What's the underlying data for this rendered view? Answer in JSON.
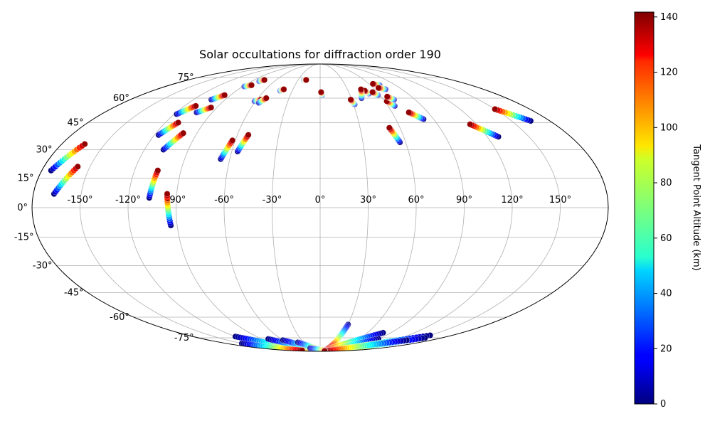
{
  "chart_data": {
    "type": "scatter",
    "projection": "mollweide",
    "title": "Solar occultations for diffraction order 190",
    "grid": true,
    "lon_ticks": [
      "-150°",
      "-120°",
      "-90°",
      "-60°",
      "-30°",
      "0°",
      "30°",
      "60°",
      "90°",
      "120°",
      "150°"
    ],
    "lon_tick_values": [
      -150,
      -120,
      -90,
      -60,
      -30,
      0,
      30,
      60,
      90,
      120,
      150
    ],
    "lat_ticks": [
      "75°",
      "60°",
      "45°",
      "30°",
      "15°",
      "0°",
      "-15°",
      "-30°",
      "-45°",
      "-60°",
      "-75°"
    ],
    "lat_tick_values": [
      75,
      60,
      45,
      30,
      15,
      0,
      -15,
      -30,
      -45,
      -60,
      -75
    ],
    "colorbar": {
      "label": "Tangent Point Altitude (km)",
      "min": 0,
      "max": 140,
      "ticks": [
        "0",
        "20",
        "40",
        "60",
        "80",
        "100",
        "120",
        "140"
      ],
      "tick_values": [
        0,
        20,
        40,
        60,
        80,
        100,
        120,
        140
      ],
      "colormap": "jet"
    },
    "tracks": [
      {
        "start": [
          -174,
          19
        ],
        "end": [
          -164,
          33
        ]
      },
      {
        "start": [
          -167,
          7
        ],
        "end": [
          -158,
          21
        ]
      },
      {
        "start": [
          -118,
          50
        ],
        "end": [
          -110,
          55
        ]
      },
      {
        "start": [
          -117,
          38
        ],
        "end": [
          -110,
          45
        ]
      },
      {
        "start": [
          -107,
          30
        ],
        "end": [
          -100,
          39
        ]
      },
      {
        "start": [
          -107,
          5
        ],
        "end": [
          -105,
          19
        ]
      },
      {
        "start": [
          -94,
          -9
        ],
        "end": [
          -96,
          7
        ]
      },
      {
        "start": [
          -103,
          59
        ],
        "end": [
          -96,
          62
        ]
      },
      {
        "start": [
          -103,
          51
        ],
        "end": [
          -95,
          54
        ]
      },
      {
        "start": [
          -88,
          68
        ],
        "end": [
          -82,
          69
        ]
      },
      {
        "start": [
          -80,
          72
        ],
        "end": [
          -76,
          73
        ]
      },
      {
        "start": [
          -66,
          25
        ],
        "end": [
          -62,
          35
        ]
      },
      {
        "start": [
          -56,
          29
        ],
        "end": [
          -52,
          38
        ]
      },
      {
        "start": [
          -61,
          58
        ],
        "end": [
          -56,
          59
        ]
      },
      {
        "start": [
          -56,
          57
        ],
        "end": [
          -52,
          60
        ]
      },
      {
        "start": [
          -43,
          65
        ],
        "end": [
          -40,
          66
        ]
      },
      {
        "start": [
          -22,
          73
        ],
        "end": [
          -19,
          73
        ]
      },
      {
        "start": [
          2,
          62
        ],
        "end": [
          1,
          64
        ]
      },
      {
        "start": [
          31,
          56
        ],
        "end": [
          29,
          59
        ]
      },
      {
        "start": [
          50,
          63
        ],
        "end": [
          48,
          65
        ]
      },
      {
        "start": [
          58,
          62
        ],
        "end": [
          55,
          64
        ]
      },
      {
        "start": [
          71,
          69
        ],
        "end": [
          65,
          70
        ]
      },
      {
        "start": [
          72,
          66
        ],
        "end": [
          66,
          67
        ]
      },
      {
        "start": [
          66,
          55
        ],
        "end": [
          62,
          58
        ]
      },
      {
        "start": [
          70,
          59
        ],
        "end": [
          66,
          61
        ]
      },
      {
        "start": [
          82,
          47
        ],
        "end": [
          74,
          51
        ]
      },
      {
        "start": [
          56,
          34
        ],
        "end": [
          52,
          42
        ]
      },
      {
        "start": [
          128,
          37
        ],
        "end": [
          115,
          44
        ]
      },
      {
        "start": [
          165,
          46
        ],
        "end": [
          150,
          53
        ]
      },
      {
        "start": [
          40,
          60
        ],
        "end": [
          45,
          66
        ]
      }
    ],
    "south_tracks": [
      {
        "start": [
          -120,
          -74
        ],
        "end": [
          -60,
          -88
        ]
      },
      {
        "start": [
          -80,
          -76
        ],
        "end": [
          -20,
          -89
        ]
      },
      {
        "start": [
          -60,
          -77
        ],
        "end": [
          -10,
          -89
        ]
      },
      {
        "start": [
          -40,
          -79
        ],
        "end": [
          0,
          -89
        ]
      },
      {
        "start": [
          30,
          -65
        ],
        "end": [
          25,
          -85
        ]
      },
      {
        "start": [
          80,
          -71
        ],
        "end": [
          20,
          -88
        ]
      },
      {
        "start": [
          90,
          -76
        ],
        "end": [
          30,
          -89
        ]
      },
      {
        "start": [
          150,
          -73
        ],
        "end": [
          60,
          -88
        ]
      },
      {
        "start": [
          155,
          -75
        ],
        "end": [
          80,
          -89
        ]
      },
      {
        "start": [
          140,
          -77
        ],
        "end": [
          50,
          -89
        ]
      },
      {
        "start": [
          -30,
          -85
        ],
        "end": [
          40,
          -89
        ]
      },
      {
        "start": [
          -150,
          -80
        ],
        "end": [
          -100,
          -88
        ]
      }
    ]
  }
}
